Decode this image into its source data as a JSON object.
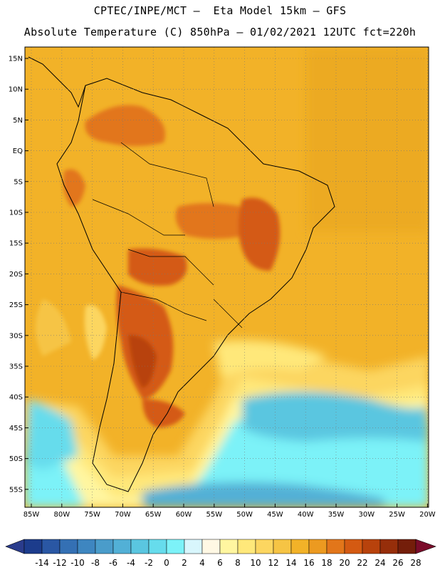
{
  "header": {
    "line1": "CPTEC/INPE/MCT –  Eta Model 15km – GFS",
    "line2": "Absolute Temperature (C) 850hPa – 01/02/2021 12UTC fct=220h"
  },
  "map": {
    "lat_labels": [
      "15N",
      "10N",
      "5N",
      "EQ",
      "5S",
      "10S",
      "15S",
      "20S",
      "25S",
      "30S",
      "35S",
      "40S",
      "45S",
      "50S",
      "55S"
    ],
    "lon_labels": [
      "85W",
      "80W",
      "75W",
      "70W",
      "65W",
      "60W",
      "55W",
      "50W",
      "45W",
      "40W",
      "35W",
      "30W",
      "25W",
      "20W"
    ],
    "grid": "dotted"
  },
  "colorbar": {
    "labels": [
      "-14",
      "-12",
      "-10",
      "-8",
      "-6",
      "-4",
      "-2",
      "0",
      "2",
      "4",
      "6",
      "8",
      "10",
      "12",
      "14",
      "16",
      "18",
      "20",
      "22",
      "24",
      "26",
      "28"
    ],
    "colors": [
      "#1c3c8c",
      "#2a57a4",
      "#3470b4",
      "#3e86c0",
      "#4a9cca",
      "#52b0d6",
      "#5ac6e0",
      "#66dcec",
      "#7cf2f8",
      "#d8f6fc",
      "#fff8e4",
      "#fff6a0",
      "#ffe87a",
      "#fcd660",
      "#f6c444",
      "#f2b228",
      "#ec9a20",
      "#e2761a",
      "#d45a12",
      "#b8420c",
      "#962e0a",
      "#741e0a"
    ],
    "under_color": "#2a3c8c",
    "over_color": "#7a0c2a"
  }
}
